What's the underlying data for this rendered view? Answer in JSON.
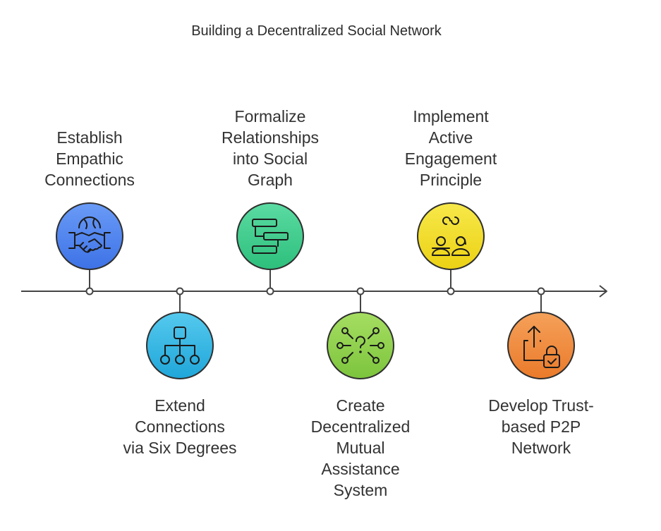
{
  "title": "Building a Decentralized Social Network",
  "steps": [
    {
      "label": "Establish\nEmpathic\nConnections",
      "icon": "handshake-globe-icon",
      "color": "#4f86f2"
    },
    {
      "label": "Extend\nConnections\nvia Six Degrees",
      "icon": "hierarchy-icon",
      "color": "#35b8e6"
    },
    {
      "label": "Formalize\nRelationships\ninto Social\nGraph",
      "icon": "flowchart-icon",
      "color": "#3fcf8e"
    },
    {
      "label": "Create\nDecentralized\nMutual\nAssistance\nSystem",
      "icon": "network-question-icon",
      "color": "#8fd24a"
    },
    {
      "label": "Implement\nActive\nEngagement\nPrinciple",
      "icon": "people-link-icon",
      "color": "#f2de2c"
    },
    {
      "label": "Develop Trust-\nbased P2P\nNetwork",
      "icon": "upload-lock-icon",
      "color": "#f08a3c"
    }
  ]
}
